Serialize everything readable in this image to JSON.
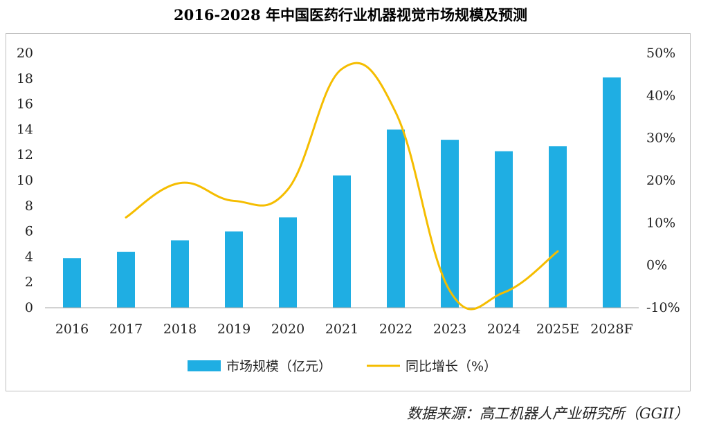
{
  "title": "2016-2028 年中国医药行业机器视觉市场规模及预测",
  "source": "数据来源：高工机器人产业研究所（GGII）",
  "colors": {
    "bar": "#1faee3",
    "line": "#f5bd00",
    "axis": "#a6a6a6",
    "text": "#222222"
  },
  "chart_data": {
    "type": "bar+line",
    "categories": [
      "2016",
      "2017",
      "2018",
      "2019",
      "2020",
      "2021",
      "2022",
      "2023",
      "2024",
      "2025E",
      "2028F"
    ],
    "series": [
      {
        "name": "市场规模（亿元）",
        "type": "bar",
        "axis": "left",
        "values": [
          3.9,
          4.4,
          5.3,
          6.0,
          7.1,
          10.4,
          14.0,
          13.2,
          12.3,
          12.7,
          18.1
        ]
      },
      {
        "name": "同比增长（%）",
        "type": "line",
        "axis": "right",
        "values": [
          null,
          11.3,
          19.4,
          15.2,
          17.9,
          46.3,
          36.0,
          -6.0,
          -6.4,
          3.3,
          null
        ]
      }
    ],
    "left_axis": {
      "min": 0,
      "max": 20,
      "step": 2,
      "ticks": [
        "0",
        "2",
        "4",
        "6",
        "8",
        "10",
        "12",
        "14",
        "16",
        "18",
        "20"
      ]
    },
    "right_axis": {
      "min": -10,
      "max": 50,
      "step": 10,
      "ticks": [
        "-10%",
        "0%",
        "10%",
        "20%",
        "30%",
        "40%",
        "50%"
      ]
    },
    "grid": false,
    "legend_position": "bottom"
  }
}
